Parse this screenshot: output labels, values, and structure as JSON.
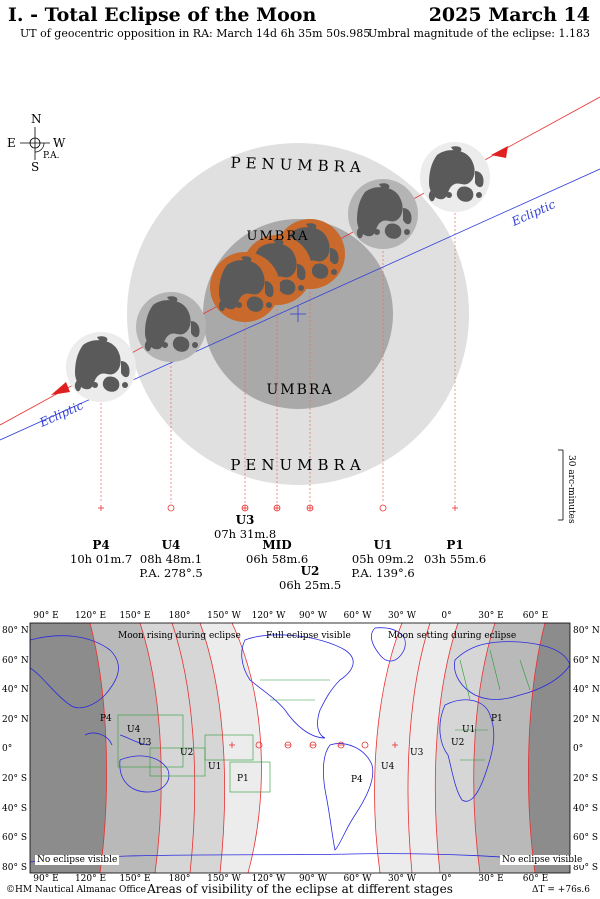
{
  "header": {
    "title_left": "I. - Total Eclipse of the Moon",
    "title_right": "2025 March 14",
    "sub_left": "UT of geocentric opposition in RA: March 14d 6h 35m 50s.985",
    "sub_right": "Umbral magnitude of the eclipse: 1.183"
  },
  "compass": {
    "n": "N",
    "s": "S",
    "e": "E",
    "w": "W",
    "pa": "P.A."
  },
  "diagram": {
    "penumbra_top": "PENUMBRA",
    "penumbra_bottom": "PENUMBRA",
    "umbra_bottom": "UMBRA",
    "umbra_top": "UMBRA",
    "ecliptic_right": "Ecliptic",
    "ecliptic_left": "Ecliptic",
    "scale_label": "30 arc-minutes"
  },
  "stages": [
    {
      "name": "P4",
      "time": "10h 01m.7",
      "pa": ""
    },
    {
      "name": "U4",
      "time": "08h 48m.1",
      "pa": "P.A. 278°.5"
    },
    {
      "name": "U3",
      "time": "07h 31m.8",
      "pa": ""
    },
    {
      "name": "MID",
      "time": "06h 58m.6",
      "pa": ""
    },
    {
      "name": "U2",
      "time": "06h 25m.5",
      "pa": ""
    },
    {
      "name": "U1",
      "time": "05h 09m.2",
      "pa": "P.A. 139°.6"
    },
    {
      "name": "P1",
      "time": "03h 55m.6",
      "pa": ""
    }
  ],
  "map": {
    "top_lon_labels": [
      "90° E",
      "120° E",
      "150° E",
      "180°",
      "150° W",
      "120° W",
      "90° W",
      "60° W",
      "30° W",
      "0°",
      "30° E",
      "60° E"
    ],
    "lat_labels": [
      "80° N",
      "60° N",
      "40° N",
      "20° N",
      "0°",
      "20° S",
      "40° S",
      "60° S",
      "80° S"
    ],
    "region_rising": "Moon rising during eclipse",
    "region_full": "Full eclipse visible",
    "region_setting": "Moon setting during eclipse",
    "no_eclipse_left": "No eclipse visible",
    "no_eclipse_right": "No eclipse visible",
    "curve_labels_left": [
      "P4",
      "U4",
      "U3",
      "U2",
      "U1",
      "P1"
    ],
    "curve_labels_right": [
      "P4",
      "U4",
      "U3",
      "U2",
      "U1",
      "P1"
    ],
    "caption": "Areas of visibility of the eclipse at different stages",
    "copyright": "©HM Nautical Almanac Office",
    "delta_t": "ΔT = +76s.6"
  },
  "colors": {
    "penumbra": "#e0e0e0",
    "umbra": "#a8a8a8",
    "moon_eclipsed": "#c96a2c",
    "ecliptic": "#3340d8",
    "moon_path": "#e83030",
    "map_dark": "#8c8c8c",
    "coast": "#2a2adf",
    "borders": "#2f9a3a"
  }
}
